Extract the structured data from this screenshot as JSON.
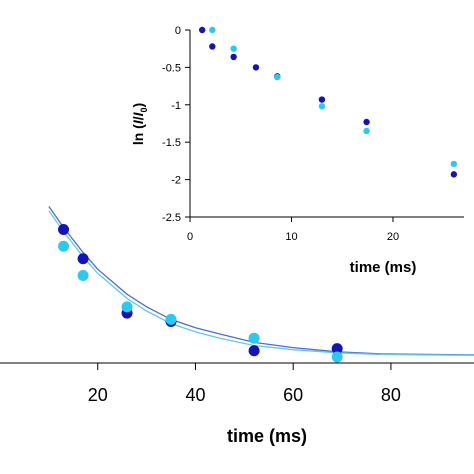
{
  "chart_data": [
    {
      "type": "scatter",
      "xlabel": "time (ms)",
      "ylabel": "",
      "xlim": [
        0,
        97
      ],
      "ylim": [
        0,
        1
      ],
      "x_ticks": [
        "20",
        "40",
        "60",
        "80"
      ],
      "grid": false,
      "series": [
        {
          "color": "#1414b4",
          "points": [
            [
              13,
              0.61
            ],
            [
              17,
              0.47
            ],
            [
              26,
              0.21
            ],
            [
              35,
              0.17
            ],
            [
              52,
              0.03
            ],
            [
              69,
              0.04
            ]
          ]
        },
        {
          "color": "#2dc8ee",
          "points": [
            [
              13,
              0.53
            ],
            [
              17,
              0.39
            ],
            [
              26,
              0.24
            ],
            [
              35,
              0.18
            ],
            [
              52,
              0.09
            ],
            [
              69,
              0.0
            ]
          ]
        }
      ],
      "fit_lines": [
        {
          "color": "#4a6fd4",
          "points": [
            [
              10,
              0.72
            ],
            [
              13,
              0.62
            ],
            [
              17,
              0.5
            ],
            [
              20,
              0.42
            ],
            [
              26,
              0.3
            ],
            [
              30,
              0.24
            ],
            [
              35,
              0.18
            ],
            [
              40,
              0.14
            ],
            [
              45,
              0.11
            ],
            [
              52,
              0.07
            ],
            [
              60,
              0.045
            ],
            [
              69,
              0.025
            ],
            [
              78,
              0.015
            ],
            [
              97,
              0.01
            ]
          ]
        },
        {
          "color": "#66c6e8",
          "points": [
            [
              10,
              0.7
            ],
            [
              13,
              0.6
            ],
            [
              17,
              0.48
            ],
            [
              20,
              0.4
            ],
            [
              26,
              0.28
            ],
            [
              30,
              0.22
            ],
            [
              35,
              0.16
            ],
            [
              40,
              0.12
            ],
            [
              45,
              0.09
            ],
            [
              52,
              0.055
            ],
            [
              60,
              0.035
            ],
            [
              69,
              0.02
            ],
            [
              78,
              0.012
            ],
            [
              97,
              0.008
            ]
          ]
        }
      ]
    },
    {
      "type": "scatter",
      "xlabel": "time (ms)",
      "ylabel_parts": [
        "ln (",
        "I",
        "/",
        "I",
        "0",
        ")"
      ],
      "xlim": [
        0,
        27
      ],
      "ylim": [
        -2.5,
        0
      ],
      "x_ticks": [
        "0",
        "10",
        "20"
      ],
      "y_ticks": [
        "0",
        "-0.5",
        "-1",
        "-1.5",
        "-2",
        "-2.5"
      ],
      "grid": false,
      "series": [
        {
          "color": "#1414b4",
          "points": [
            [
              1.2,
              0.0
            ],
            [
              2.2,
              -0.22
            ],
            [
              4.3,
              -0.36
            ],
            [
              6.5,
              -0.5
            ],
            [
              8.6,
              -0.62
            ],
            [
              13.0,
              -0.93
            ],
            [
              17.4,
              -1.23
            ],
            [
              26.0,
              -1.93
            ]
          ]
        },
        {
          "color": "#2dc8ee",
          "points": [
            [
              2.2,
              0.0
            ],
            [
              4.3,
              -0.25
            ],
            [
              8.6,
              -0.63
            ],
            [
              13.0,
              -1.02
            ],
            [
              17.4,
              -1.35
            ],
            [
              26.0,
              -1.79
            ]
          ]
        }
      ]
    }
  ]
}
